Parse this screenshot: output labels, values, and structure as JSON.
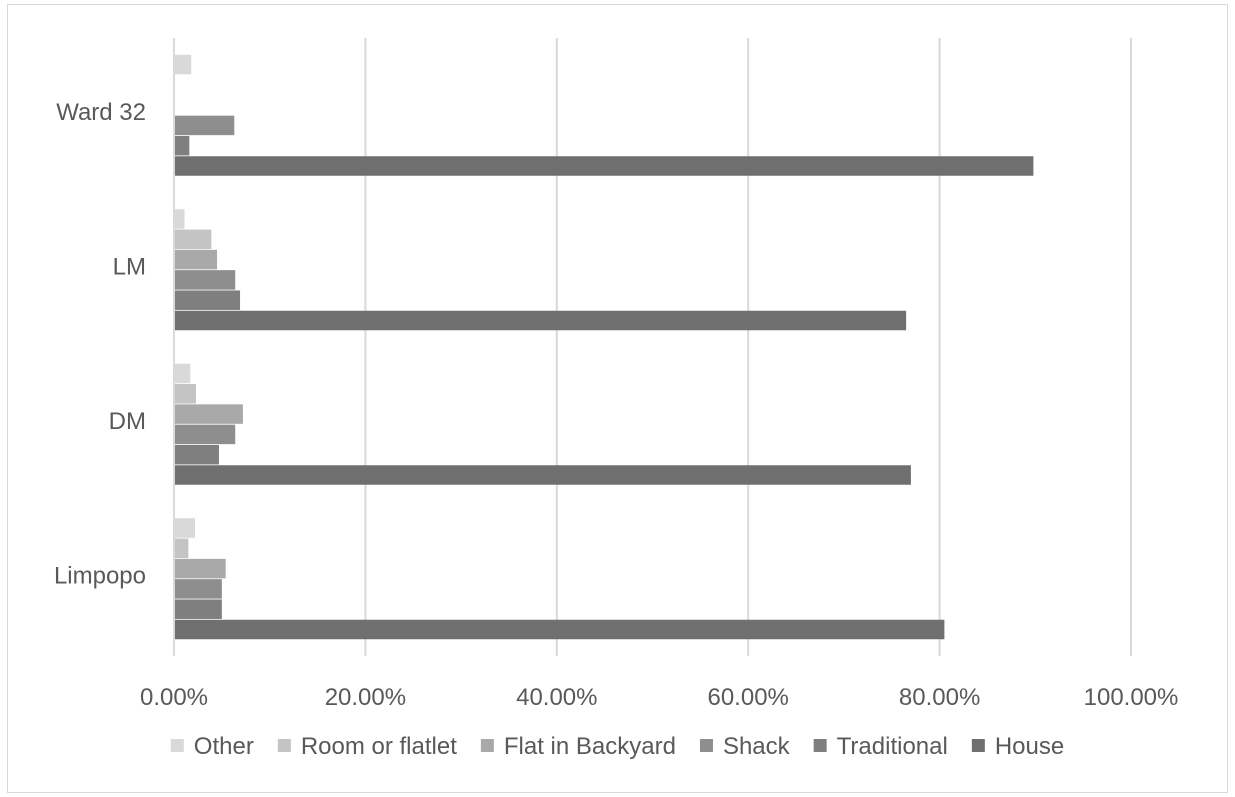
{
  "chart_data": {
    "type": "bar",
    "orientation": "horizontal",
    "categories": [
      "Ward 32",
      "LM",
      "DM",
      "Limpopo"
    ],
    "series": [
      {
        "name": "Other",
        "color": "#d9d9d9",
        "values": [
          1.8,
          1.1,
          1.7,
          2.2
        ]
      },
      {
        "name": "Room or flatlet",
        "color": "#c4c4c4",
        "values": [
          0,
          3.9,
          2.3,
          1.5
        ]
      },
      {
        "name": "Flat in Backyard",
        "color": "#a9a9a9",
        "values": [
          0,
          4.5,
          7.2,
          5.4
        ]
      },
      {
        "name": "Shack",
        "color": "#8e8e8e",
        "values": [
          6.3,
          6.4,
          6.4,
          5.0
        ]
      },
      {
        "name": "Traditional",
        "color": "#7f7f7f",
        "values": [
          1.6,
          6.9,
          4.7,
          5.0
        ]
      },
      {
        "name": "House",
        "color": "#6f6f6f",
        "values": [
          89.8,
          76.5,
          77.0,
          80.5
        ]
      }
    ],
    "x_ticks": [
      "0.00%",
      "20.00%",
      "40.00%",
      "60.00%",
      "80.00%",
      "100.00%"
    ],
    "xlim": [
      0,
      100
    ],
    "grid": true,
    "legend_position": "bottom"
  }
}
